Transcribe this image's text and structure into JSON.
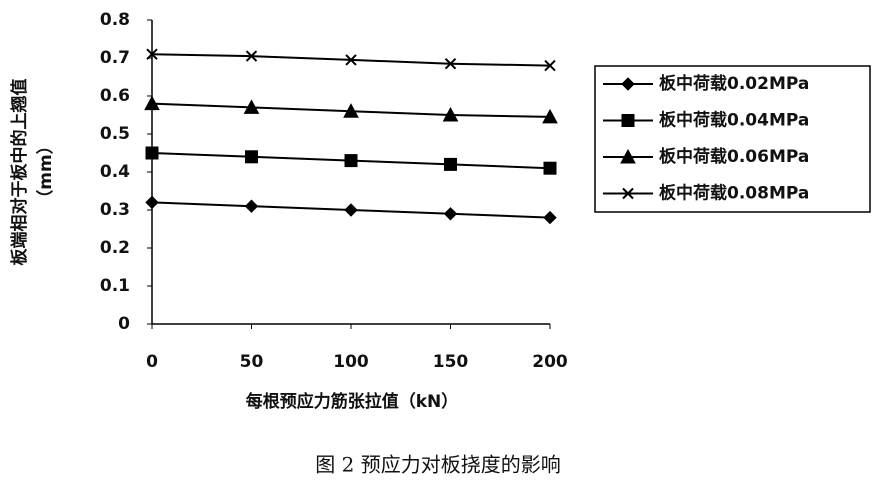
{
  "chart_data": {
    "type": "line",
    "ylabel": [
      "板端相对于板中的上翘值",
      "（mm）"
    ],
    "xlabel": "每根预应力筋张拉值（kN）",
    "caption": "图 2   预应力对板挠度的影响",
    "x": [
      0,
      50,
      100,
      150,
      200
    ],
    "xlim": [
      0,
      200
    ],
    "xticks": [
      0,
      50,
      100,
      150,
      200
    ],
    "ylim": [
      0,
      0.8
    ],
    "yticks": [
      0,
      0.1,
      0.2,
      0.3,
      0.4,
      0.5,
      0.6,
      0.7,
      0.8
    ],
    "legend": "right",
    "series": [
      {
        "name": "板中荷载0.02MPa",
        "color": "#000000",
        "marker": "diamond",
        "values": [
          0.32,
          0.31,
          0.3,
          0.29,
          0.28
        ]
      },
      {
        "name": "板中荷载0.04MPa",
        "color": "#000000",
        "marker": "square",
        "values": [
          0.45,
          0.44,
          0.43,
          0.42,
          0.41
        ]
      },
      {
        "name": "板中荷载0.06MPa",
        "color": "#000000",
        "marker": "triangle",
        "values": [
          0.58,
          0.57,
          0.56,
          0.55,
          0.545
        ]
      },
      {
        "name": "板中荷载0.08MPa",
        "color": "#000000",
        "marker": "x",
        "values": [
          0.71,
          0.705,
          0.695,
          0.685,
          0.68
        ]
      }
    ]
  }
}
